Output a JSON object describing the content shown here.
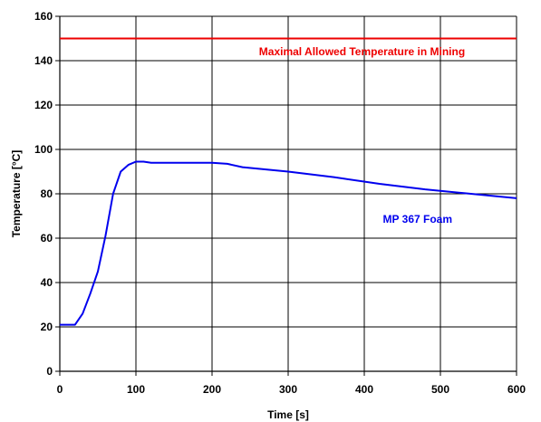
{
  "chart_data": {
    "type": "line",
    "title": "",
    "xlabel": "Time [s]",
    "ylabel": "Temperature [°C]",
    "xlim": [
      0,
      600
    ],
    "ylim": [
      0,
      160
    ],
    "xticks": [
      0,
      100,
      200,
      300,
      400,
      500,
      600
    ],
    "yticks": [
      0,
      20,
      40,
      60,
      80,
      100,
      120,
      140,
      160
    ],
    "grid": true,
    "legend": "none",
    "series": [
      {
        "name": "MP 367 Foam",
        "color": "#0000ee",
        "x": [
          0,
          20,
          30,
          40,
          50,
          60,
          70,
          80,
          90,
          100,
          110,
          120,
          150,
          200,
          220,
          240,
          300,
          360,
          420,
          480,
          540,
          600
        ],
        "y": [
          21,
          21,
          26,
          35,
          45,
          61,
          80,
          90,
          93,
          94.5,
          94.5,
          94,
          94,
          94,
          93.5,
          92,
          90,
          87.5,
          84.5,
          82,
          80,
          78
        ]
      },
      {
        "name": "Maximal Allowed Temperature in Mining",
        "color": "#ee0000",
        "x": [
          0,
          600
        ],
        "y": [
          150,
          150
        ]
      }
    ],
    "annotations": [
      {
        "text": "Maximal Allowed Temperature in Mining",
        "color": "#ee0000",
        "x": 397,
        "y": 142.5
      },
      {
        "text": "MP 367 Foam",
        "color": "#0000ee",
        "x": 470,
        "y": 67
      }
    ]
  }
}
